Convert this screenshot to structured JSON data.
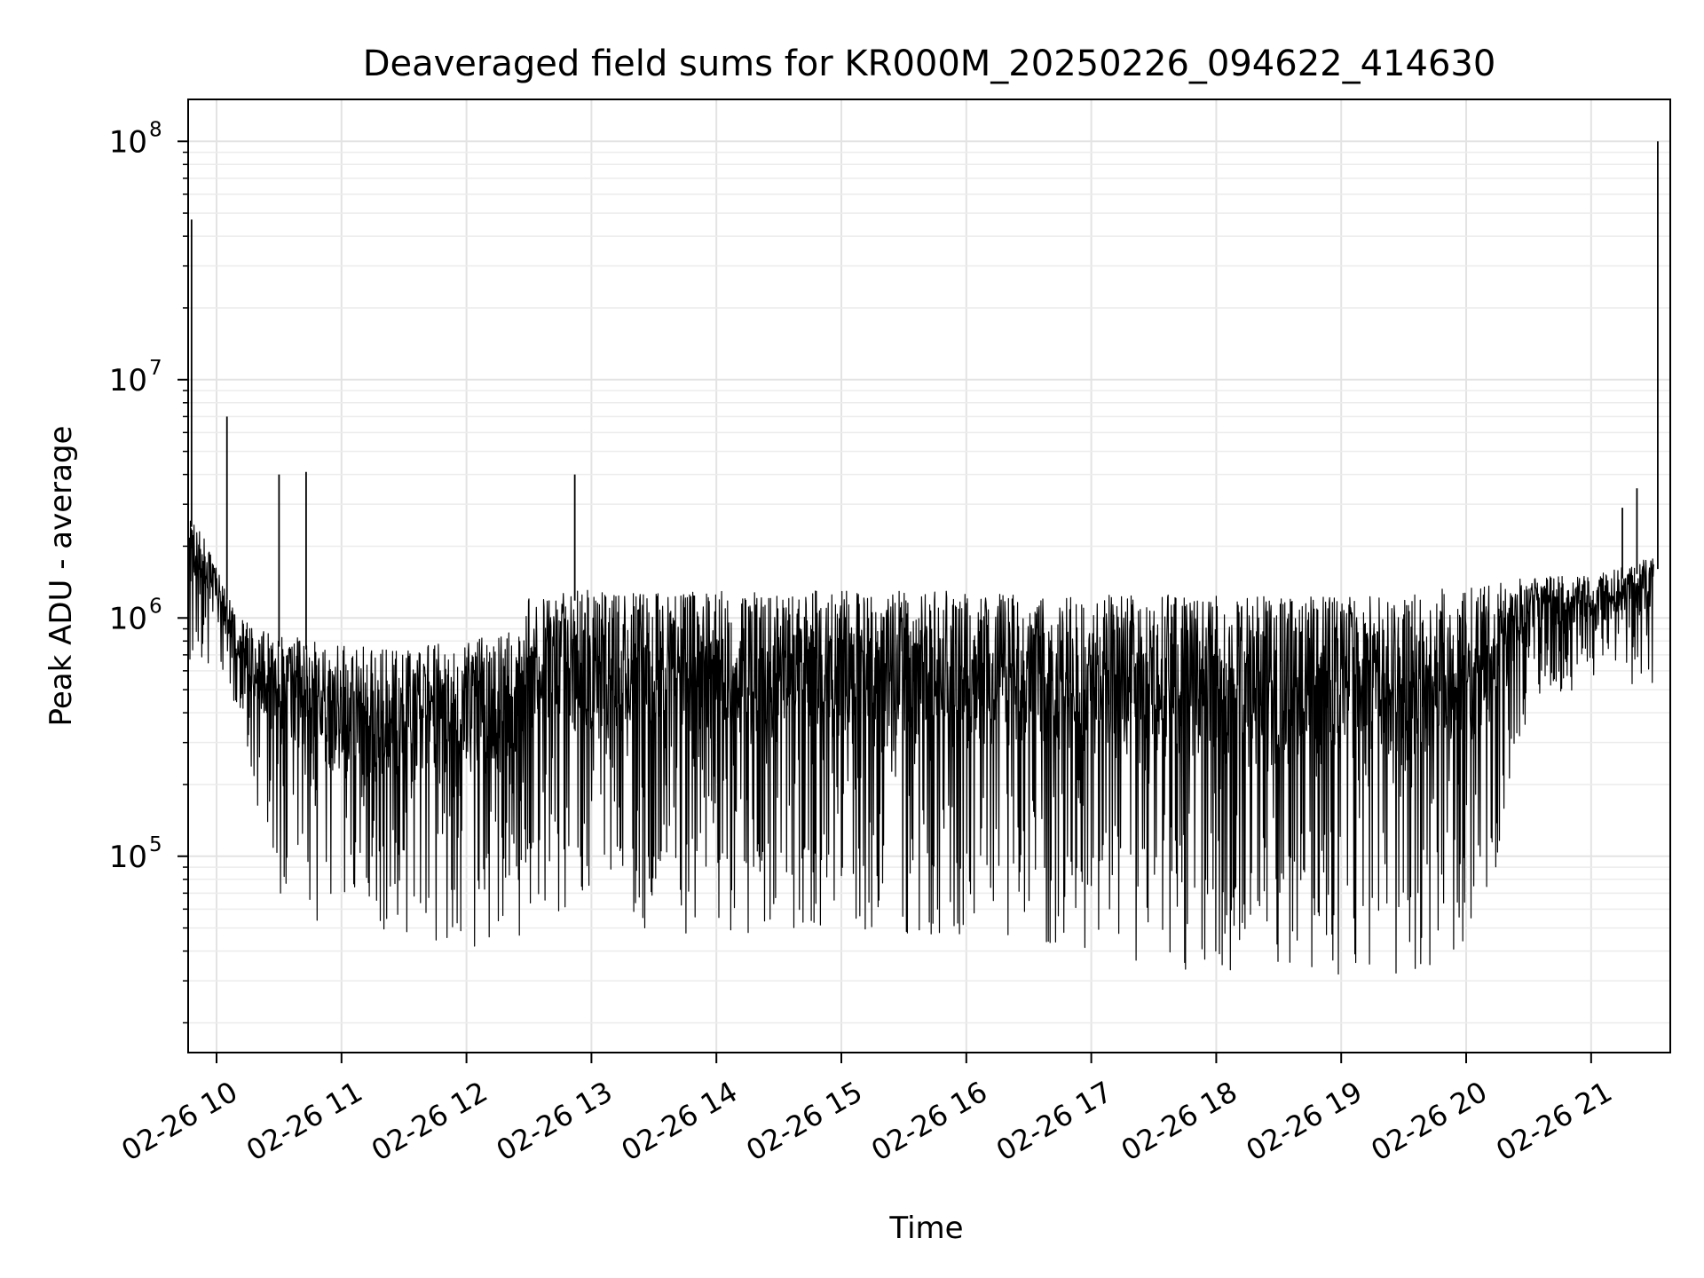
{
  "chart_data": {
    "type": "line",
    "title": "Deaveraged field sums for KR000M_20250226_094622_414630",
    "xlabel": "Time",
    "ylabel": "Peak ADU - average",
    "yscale": "log",
    "ylim": [
      15000,
      150000000
    ],
    "xlim": [
      "02-26 09:46:22",
      "02-26 21:38:00"
    ],
    "grid": true,
    "line_color": "#000000",
    "x_ticks": [
      {
        "value": "02-26 10:00",
        "label": "02-26 10"
      },
      {
        "value": "02-26 11:00",
        "label": "02-26 11"
      },
      {
        "value": "02-26 12:00",
        "label": "02-26 12"
      },
      {
        "value": "02-26 13:00",
        "label": "02-26 13"
      },
      {
        "value": "02-26 14:00",
        "label": "02-26 14"
      },
      {
        "value": "02-26 15:00",
        "label": "02-26 15"
      },
      {
        "value": "02-26 16:00",
        "label": "02-26 16"
      },
      {
        "value": "02-26 17:00",
        "label": "02-26 17"
      },
      {
        "value": "02-26 18:00",
        "label": "02-26 18"
      },
      {
        "value": "02-26 19:00",
        "label": "02-26 19"
      },
      {
        "value": "02-26 20:00",
        "label": "02-26 20"
      },
      {
        "value": "02-26 21:00",
        "label": "02-26 21"
      }
    ],
    "y_ticks": [
      {
        "value": 100000,
        "base": "10",
        "exp": "5"
      },
      {
        "value": 1000000,
        "base": "10",
        "exp": "6"
      },
      {
        "value": 10000000,
        "base": "10",
        "exp": "7"
      },
      {
        "value": 100000000,
        "base": "10",
        "exp": "8"
      }
    ],
    "series": [
      {
        "envelope": {
          "x": [
            "02-26 09:47",
            "02-26 10:00",
            "02-26 10:10",
            "02-26 10:30",
            "02-26 11:00",
            "02-26 11:30",
            "02-26 12:00",
            "02-26 12:25",
            "02-26 12:30",
            "02-26 13:00",
            "02-26 14:00",
            "02-26 15:00",
            "02-26 16:00",
            "02-26 17:00",
            "02-26 17:30",
            "02-26 18:00",
            "02-26 18:30",
            "02-26 19:00",
            "02-26 19:30",
            "02-26 20:00",
            "02-26 20:10",
            "02-26 20:30",
            "02-26 21:00",
            "02-26 21:30"
          ],
          "high": [
            2800000,
            1800000,
            1000000,
            850000,
            800000,
            750000,
            800000,
            900000,
            1400000,
            1300000,
            1300000,
            1300000,
            1300000,
            1250000,
            1250000,
            1250000,
            1250000,
            1250000,
            1300000,
            1350000,
            1400000,
            1500000,
            1500000,
            1800000
          ],
          "low": [
            500000,
            700000,
            350000,
            70000,
            45000,
            38000,
            40000,
            45000,
            60000,
            50000,
            45000,
            50000,
            45000,
            40000,
            35000,
            32000,
            30000,
            30000,
            30000,
            40000,
            45000,
            400000,
            550000,
            500000
          ]
        },
        "spikes": [
          {
            "x": "02-26 09:48",
            "y": 47000000
          },
          {
            "x": "02-26 10:05",
            "y": 7000000
          },
          {
            "x": "02-26 10:30",
            "y": 4000000
          },
          {
            "x": "02-26 10:43",
            "y": 4100000
          },
          {
            "x": "02-26 12:52",
            "y": 4000000
          },
          {
            "x": "02-26 21:32",
            "y": 100000000
          },
          {
            "x": "02-26 21:15",
            "y": 2900000
          },
          {
            "x": "02-26 21:22",
            "y": 3500000
          }
        ]
      }
    ]
  }
}
